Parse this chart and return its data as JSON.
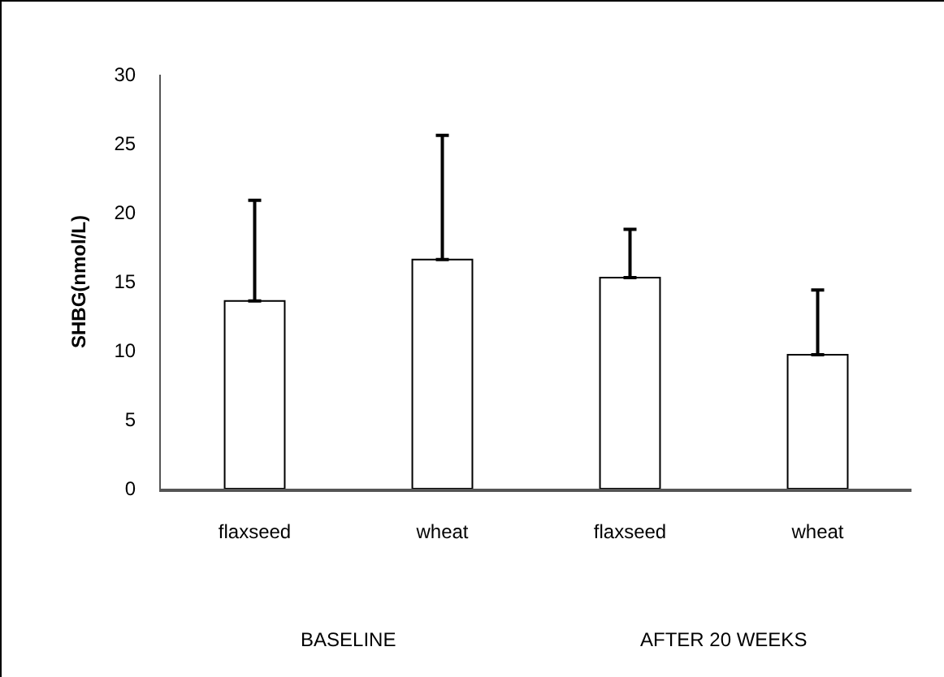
{
  "chart_data": {
    "type": "bar",
    "ylabel": "SHBG(nmol/L)",
    "categories": [
      "flaxseed",
      "wheat",
      "flaxseed",
      "wheat"
    ],
    "values": [
      13.6,
      16.6,
      15.3,
      9.7
    ],
    "errors": [
      [
        13.6,
        20.9
      ],
      [
        16.6,
        25.6
      ],
      [
        15.3,
        18.8
      ],
      [
        9.7,
        14.4
      ]
    ],
    "color": "#ffffff",
    "ylim": [
      0,
      30
    ],
    "yticks": [
      0,
      5,
      10,
      15,
      20,
      25,
      30
    ],
    "annotations": [
      "BASELINE",
      "AFTER 20 WEEKS"
    ]
  }
}
